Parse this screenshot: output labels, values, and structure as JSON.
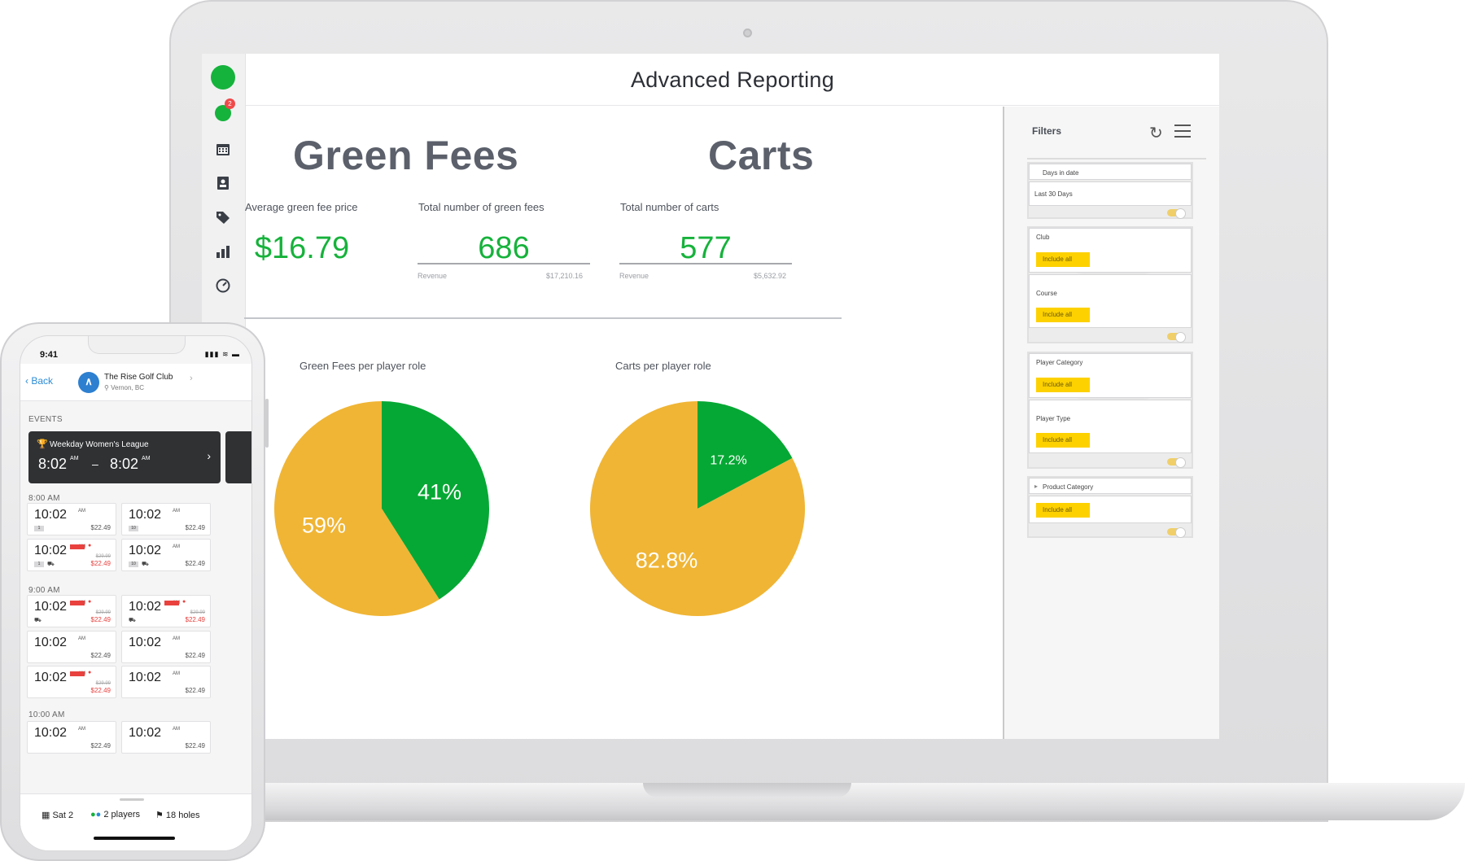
{
  "app": {
    "title": "Advanced Reporting",
    "notification_count": "2"
  },
  "green_fees": {
    "heading": "Green Fees",
    "avg_label": "Average green fee price",
    "avg_value": "$16.79",
    "total_label": "Total number of green fees",
    "total_value": "686",
    "revenue_label": "Revenue",
    "revenue_value": "$17,210.16"
  },
  "carts": {
    "heading": "Carts",
    "total_label": "Total number of carts",
    "total_value": "577",
    "revenue_label": "Revenue",
    "revenue_value": "$5,632.92"
  },
  "chart_data": [
    {
      "type": "pie",
      "title": "Green Fees per player role",
      "slices": [
        {
          "label": "41%",
          "value": 41,
          "color": "#05a834"
        },
        {
          "label": "59%",
          "value": 59,
          "color": "#f0b535"
        }
      ]
    },
    {
      "type": "pie",
      "title": "Carts per player role",
      "slices": [
        {
          "label": "17.2%",
          "value": 17.2,
          "color": "#05a834"
        },
        {
          "label": "82.8%",
          "value": 82.8,
          "color": "#f0b535"
        }
      ]
    }
  ],
  "filters": {
    "title": "Filters",
    "days_label": "Days in date",
    "days_value": "Last 30 Days",
    "club_label": "Club",
    "course_label": "Course",
    "player_category_label": "Player Category",
    "player_type_label": "Player Type",
    "product_category_label": "Product Category",
    "include_all": "Include all"
  },
  "phone": {
    "time": "9:41",
    "status": "▮▮▮ ≋ ▬",
    "back": "Back",
    "club_name": "The Rise Golf Club",
    "club_location": "Vernon, BC",
    "events_label": "EVENTS",
    "event": {
      "name": "Weekday Women's League",
      "start": "8:02",
      "end": "8:02",
      "ampm": "AM"
    },
    "sections": [
      {
        "label": "8:00 AM"
      },
      {
        "label": "9:00 AM"
      },
      {
        "label": "10:00 AM"
      }
    ],
    "slot_time": "10:02",
    "slot_ampm": "AM",
    "price": "$22.49",
    "old_price": "$29.99",
    "chip_one": "1",
    "chip_ten": "10",
    "bottom": {
      "date": "Sat 2",
      "players": "2 players",
      "holes": "18 holes"
    }
  }
}
